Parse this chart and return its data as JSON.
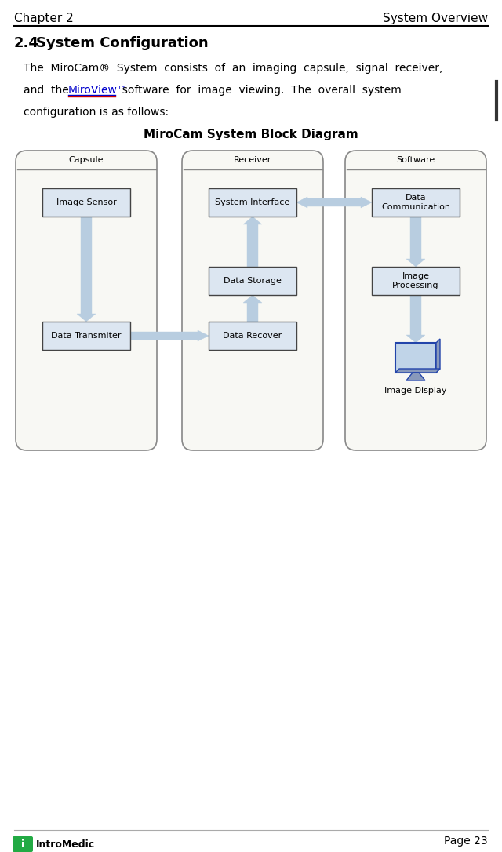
{
  "page_title_left": "Chapter 2",
  "page_title_right": "System Overview",
  "section_number": "2.4",
  "section_name": "System Configuration",
  "body_line1": "The  MiroCam®  System  consists  of  an  imaging  capsule,  signal  receiver,",
  "body_line2a": "and  the  ",
  "body_line2b": "MiroView™",
  "body_line2c": "  software  for  image  viewing.  The  overall  system",
  "body_line3": "configuration is as follows:",
  "diagram_title": "MiroCam System Block Diagram",
  "panel_labels": [
    "Capsule",
    "Receiver",
    "Software"
  ],
  "box_image_sensor": "Image Sensor",
  "box_data_transmitter": "Data Transmiter",
  "box_system_interface": "System Interface",
  "box_data_storage": "Data Storage",
  "box_data_recover": "Data Recover",
  "box_data_communication": "Data\nCommunication",
  "box_image_processing": "Image\nProcessing",
  "box_image_display": "Image Display",
  "bg_color": "#ffffff",
  "panel_bg": "#f8f8f4",
  "panel_border": "#888888",
  "box_bg": "#dce6f1",
  "box_border": "#444444",
  "arrow_color": "#b8cde0",
  "page_number": "Page 23",
  "logo_text": "IntroMedic"
}
